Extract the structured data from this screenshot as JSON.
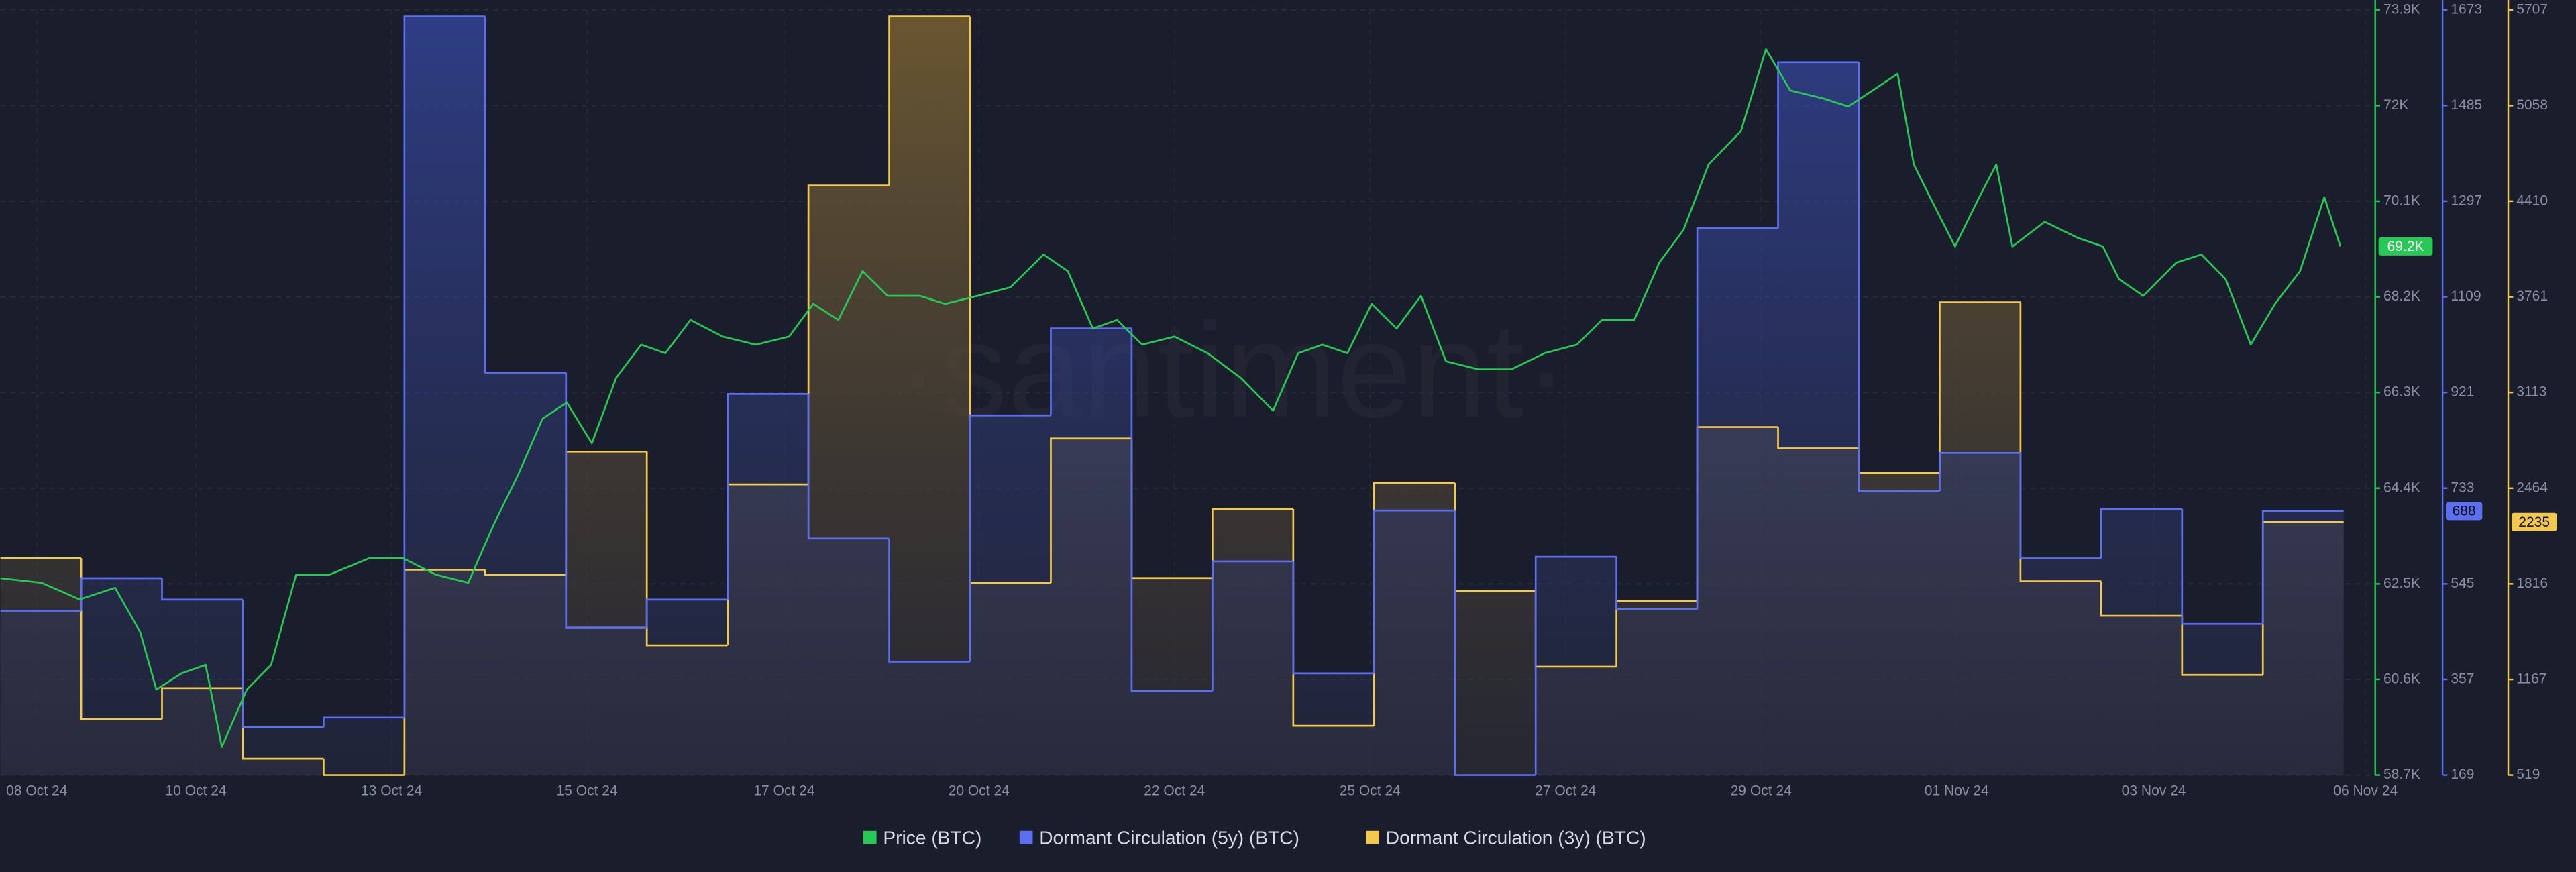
{
  "chart_data": {
    "type": "line",
    "watermark": "·santiment·",
    "legend": "bottom",
    "grid": true,
    "xlim": [
      0,
      29.37
    ],
    "xticks": [
      {
        "value": 0.45,
        "label": "08 Oct 24"
      },
      {
        "value": 2.42,
        "label": "10 Oct 24"
      },
      {
        "value": 4.84,
        "label": "13 Oct 24"
      },
      {
        "value": 7.26,
        "label": "15 Oct 24"
      },
      {
        "value": 9.7,
        "label": "17 Oct 24"
      },
      {
        "value": 12.11,
        "label": "20 Oct 24"
      },
      {
        "value": 14.53,
        "label": "22 Oct 24"
      },
      {
        "value": 16.95,
        "label": "25 Oct 24"
      },
      {
        "value": 19.37,
        "label": "27 Oct 24"
      },
      {
        "value": 21.79,
        "label": "29 Oct 24"
      },
      {
        "value": 24.21,
        "label": "01 Nov 24"
      },
      {
        "value": 26.65,
        "label": "03 Nov 24"
      },
      {
        "value": 29.27,
        "label": "06 Nov 24"
      }
    ],
    "ylim": [
      58700,
      73900
    ],
    "yticks": [
      {
        "value": 58700,
        "label": "58.7K"
      },
      {
        "value": 60600,
        "label": "60.6K"
      },
      {
        "value": 62500,
        "label": "62.5K"
      },
      {
        "value": 64400,
        "label": "64.4K"
      },
      {
        "value": 66300,
        "label": "66.3K"
      },
      {
        "value": 68200,
        "label": "68.2K"
      },
      {
        "value": 70100,
        "label": "70.1K"
      },
      {
        "value": 72000,
        "label": "72K"
      },
      {
        "value": 73900,
        "label": "73.9K"
      }
    ],
    "y2lim": [
      169,
      1673
    ],
    "y2ticks": [
      169,
      357,
      545,
      733,
      921,
      1109,
      1297,
      1485,
      1673
    ],
    "y3lim": [
      519,
      5707
    ],
    "y3ticks": [
      519,
      1167,
      1816,
      2464,
      3113,
      3761,
      4410,
      5058,
      5707
    ],
    "series": [
      {
        "name": "Price (BTC)",
        "type": "line",
        "axis": "y",
        "color": "#26c953",
        "badge": "69.2K",
        "x": [
          0,
          0.51,
          0.98,
          1.42,
          1.73,
          1.93,
          2.24,
          2.54,
          2.74,
          3.05,
          3.35,
          3.66,
          4.07,
          4.57,
          4.98,
          5.39,
          5.79,
          6.1,
          6.4,
          6.71,
          7.01,
          7.32,
          7.62,
          7.93,
          8.23,
          8.54,
          8.94,
          9.35,
          9.76,
          10.06,
          10.37,
          10.67,
          10.98,
          11.38,
          11.69,
          12.09,
          12.5,
          12.91,
          13.21,
          13.52,
          13.82,
          14.13,
          14.53,
          14.94,
          15.35,
          15.75,
          16.06,
          16.36,
          16.67,
          16.97,
          17.28,
          17.58,
          17.89,
          18.29,
          18.7,
          19.11,
          19.51,
          19.82,
          20.22,
          20.53,
          20.83,
          21.14,
          21.54,
          21.85,
          22.15,
          22.56,
          22.87,
          23.17,
          23.48,
          23.68,
          23.88,
          24.19,
          24.49,
          24.7,
          24.9,
          25.3,
          25.71,
          26.02,
          26.22,
          26.52,
          26.93,
          27.24,
          27.54,
          27.85,
          28.15,
          28.46,
          28.76,
          28.96
        ],
        "values": [
          62610,
          62520,
          62190,
          62420,
          61540,
          60400,
          60720,
          60890,
          59260,
          60400,
          60890,
          62680,
          62680,
          63010,
          63010,
          62680,
          62520,
          63660,
          64640,
          65780,
          66100,
          65290,
          66590,
          67250,
          67080,
          67740,
          67410,
          67250,
          67410,
          68060,
          67740,
          68710,
          68220,
          68220,
          68060,
          68220,
          68390,
          69040,
          68710,
          67570,
          67740,
          67250,
          67410,
          67080,
          66590,
          65940,
          67080,
          67250,
          67080,
          68060,
          67570,
          68220,
          66920,
          66760,
          66760,
          67080,
          67250,
          67740,
          67740,
          68880,
          69530,
          70830,
          71490,
          73120,
          72300,
          72140,
          71980,
          72300,
          72630,
          70830,
          70180,
          69200,
          70180,
          70830,
          69200,
          69690,
          69370,
          69200,
          68550,
          68220,
          68880,
          69040,
          68550,
          67250,
          68060,
          68710,
          70180,
          69200
        ]
      },
      {
        "name": "Dormant Circulation (5y) (BTC)",
        "type": "step-area",
        "axis": "y2",
        "color": "#5b6ff0",
        "badge": "688",
        "x": [
          0,
          1,
          2,
          3,
          4,
          5,
          6,
          7,
          8,
          9,
          10,
          11,
          12,
          13,
          14,
          15,
          16,
          17,
          18,
          19,
          20,
          21,
          22,
          23,
          24,
          25,
          26,
          27,
          28
        ],
        "values": [
          492,
          556,
          514,
          263,
          282,
          1660,
          960,
          459,
          514,
          918,
          634,
          392,
          876,
          1047,
          334,
          589,
          369,
          689,
          169,
          598,
          495,
          1244,
          1570,
          727,
          802,
          595,
          692,
          466,
          688
        ]
      },
      {
        "name": "Dormant Circulation (3y) (BTC)",
        "type": "step-area",
        "axis": "y3",
        "color": "#f2c94c",
        "badge": "2235",
        "x": [
          0,
          1,
          2,
          3,
          4,
          5,
          6,
          7,
          8,
          9,
          10,
          11,
          12,
          13,
          14,
          15,
          16,
          17,
          18,
          19,
          20,
          21,
          22,
          23,
          24,
          25,
          26,
          27,
          28
        ],
        "values": [
          1989,
          898,
          1109,
          630,
          519,
          1911,
          1877,
          2712,
          1399,
          2490,
          4516,
          5662,
          1822,
          2801,
          1855,
          2323,
          853,
          2501,
          1766,
          1254,
          1699,
          2879,
          2734,
          2567,
          3725,
          1833,
          1599,
          1198,
          2235
        ]
      }
    ]
  }
}
